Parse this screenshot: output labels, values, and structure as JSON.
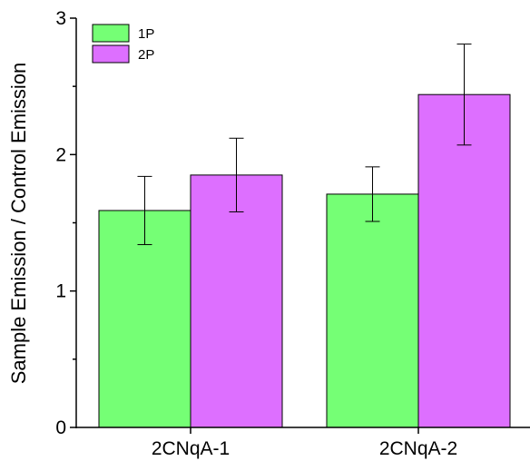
{
  "chart_data": {
    "type": "bar",
    "categories": [
      "2CNqA-1",
      "2CNqA-2"
    ],
    "series": [
      {
        "name": "1P",
        "values": [
          1.59,
          1.71
        ],
        "errors": [
          0.25,
          0.2
        ],
        "color": "#75FF75"
      },
      {
        "name": "2P",
        "values": [
          1.85,
          2.44
        ],
        "errors": [
          0.27,
          0.37
        ],
        "color": "#DD6FFF"
      }
    ],
    "title": "",
    "xlabel": "",
    "ylabel": "Sample Emission / Control Emission",
    "ylim": [
      0,
      3
    ],
    "yticks": [
      "0",
      "1",
      "2",
      "3"
    ],
    "grid": false,
    "legend_position": "top-left"
  }
}
